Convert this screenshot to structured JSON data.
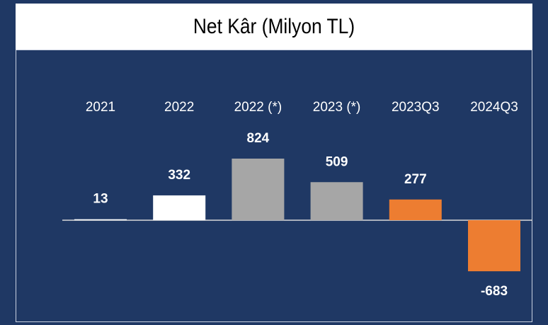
{
  "chart_data": {
    "type": "bar",
    "title": "Net Kâr (Milyon TL)",
    "categories": [
      "2021",
      "2022",
      "2022 (*)",
      "2023 (*)",
      "2023Q3",
      "2024Q3"
    ],
    "values": [
      13,
      332,
      824,
      509,
      277,
      -683
    ],
    "colors": [
      "#ffffff",
      "#ffffff",
      "#a6a6a6",
      "#a6a6a6",
      "#ed7d31",
      "#ed7d31"
    ]
  }
}
